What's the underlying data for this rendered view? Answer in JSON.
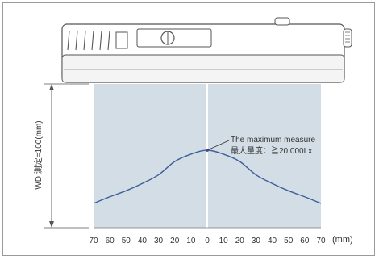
{
  "diagram": {
    "y_axis_label": "WD 測定=100(mm)",
    "x_unit_label": "(mm)",
    "annotation": {
      "line1": "The maximum measure",
      "line2": "最大量度：≧20,000Lx"
    },
    "colors": {
      "panel": "#d2dde5",
      "curve": "#3e5f9a",
      "outline": "#555555",
      "text": "#333333"
    },
    "icons": [
      "light-meter-device-icon"
    ]
  },
  "chart_data": {
    "type": "line",
    "x_ticks": [
      "70",
      "60",
      "50",
      "40",
      "30",
      "20",
      "10",
      "0",
      "10",
      "20",
      "30",
      "40",
      "50",
      "60",
      "70"
    ],
    "x_unit": "(mm)",
    "ylabel": "WD 測定=100(mm)",
    "series": [
      {
        "x": [
          -70,
          -60,
          -50,
          -40,
          -30,
          -20,
          -10,
          0,
          10,
          20,
          30,
          40,
          50,
          60,
          70
        ],
        "y": [
          0.2,
          0.3,
          0.39,
          0.5,
          0.63,
          0.83,
          0.94,
          1.0,
          0.94,
          0.83,
          0.63,
          0.5,
          0.39,
          0.3,
          0.2
        ]
      }
    ],
    "annotations": [
      "The maximum measure",
      "最大量度：≧20,000Lx"
    ],
    "grid": false
  }
}
